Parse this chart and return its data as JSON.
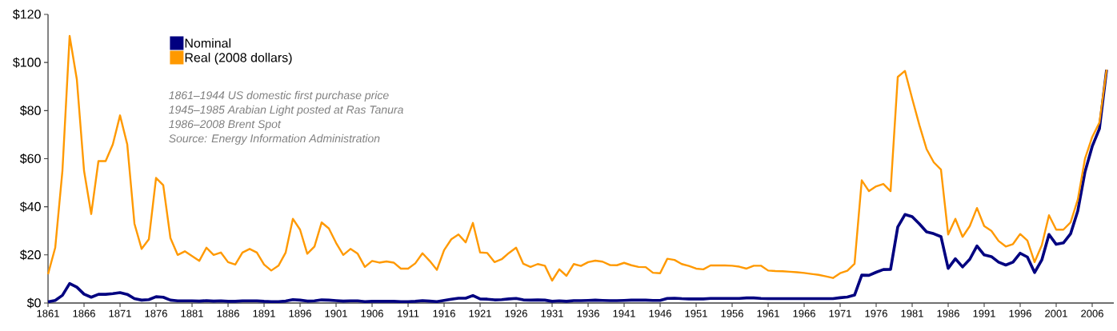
{
  "chart_data": {
    "type": "line",
    "x": [
      1861,
      1862,
      1863,
      1864,
      1865,
      1866,
      1867,
      1868,
      1869,
      1870,
      1871,
      1872,
      1873,
      1874,
      1875,
      1876,
      1877,
      1878,
      1879,
      1880,
      1881,
      1882,
      1883,
      1884,
      1885,
      1886,
      1887,
      1888,
      1889,
      1890,
      1891,
      1892,
      1893,
      1894,
      1895,
      1896,
      1897,
      1898,
      1899,
      1900,
      1901,
      1902,
      1903,
      1904,
      1905,
      1906,
      1907,
      1908,
      1909,
      1910,
      1911,
      1912,
      1913,
      1914,
      1915,
      1916,
      1917,
      1918,
      1919,
      1920,
      1921,
      1922,
      1923,
      1924,
      1925,
      1926,
      1927,
      1928,
      1929,
      1930,
      1931,
      1932,
      1933,
      1934,
      1935,
      1936,
      1937,
      1938,
      1939,
      1940,
      1941,
      1942,
      1943,
      1944,
      1945,
      1946,
      1947,
      1948,
      1949,
      1950,
      1951,
      1952,
      1953,
      1954,
      1955,
      1956,
      1957,
      1958,
      1959,
      1960,
      1961,
      1962,
      1963,
      1964,
      1965,
      1966,
      1967,
      1968,
      1969,
      1970,
      1971,
      1972,
      1973,
      1974,
      1975,
      1976,
      1977,
      1978,
      1979,
      1980,
      1981,
      1982,
      1983,
      1984,
      1985,
      1986,
      1987,
      1988,
      1989,
      1990,
      1991,
      1992,
      1993,
      1994,
      1995,
      1996,
      1997,
      1998,
      1999,
      2000,
      2001,
      2002,
      2003,
      2004,
      2005,
      2006,
      2007,
      2008
    ],
    "series": [
      {
        "name": "Nominal",
        "color": "#000080",
        "values": [
          0.5,
          1.1,
          3.2,
          8.1,
          6.6,
          3.7,
          2.4,
          3.6,
          3.6,
          3.9,
          4.3,
          3.6,
          1.8,
          1.2,
          1.4,
          2.6,
          2.4,
          1.2,
          0.9,
          0.9,
          0.9,
          0.8,
          1.0,
          0.8,
          0.9,
          0.7,
          0.7,
          0.9,
          0.9,
          0.9,
          0.7,
          0.6,
          0.6,
          0.8,
          1.4,
          1.2,
          0.8,
          0.9,
          1.3,
          1.2,
          1.0,
          0.8,
          0.9,
          0.9,
          0.6,
          0.7,
          0.7,
          0.7,
          0.7,
          0.6,
          0.6,
          0.7,
          1.0,
          0.8,
          0.6,
          1.1,
          1.6,
          2.0,
          2.0,
          3.1,
          1.7,
          1.6,
          1.3,
          1.4,
          1.7,
          1.9,
          1.3,
          1.2,
          1.3,
          1.2,
          0.7,
          0.9,
          0.7,
          1.0,
          1.0,
          1.1,
          1.2,
          1.1,
          1.0,
          1.0,
          1.1,
          1.2,
          1.2,
          1.2,
          1.1,
          1.1,
          1.9,
          2.0,
          1.8,
          1.7,
          1.7,
          1.7,
          1.9,
          1.9,
          1.9,
          1.9,
          1.9,
          2.1,
          2.1,
          1.9,
          1.8,
          1.8,
          1.8,
          1.8,
          1.8,
          1.8,
          1.8,
          1.8,
          1.8,
          1.8,
          2.2,
          2.5,
          3.3,
          11.6,
          11.5,
          12.8,
          13.9,
          14.0,
          31.6,
          36.8,
          35.9,
          32.9,
          29.6,
          28.8,
          27.6,
          14.4,
          18.4,
          15.0,
          18.2,
          23.7,
          20.0,
          19.3,
          17.0,
          15.8,
          17.0,
          20.7,
          19.1,
          12.7,
          17.9,
          28.5,
          24.4,
          25.0,
          28.8,
          38.3,
          54.5,
          65.1,
          72.4,
          97
        ]
      },
      {
        "name": "Real (2008 dollars)",
        "color": "#ff9900",
        "values": [
          12,
          23,
          55,
          111,
          93,
          55,
          37,
          59,
          59,
          66,
          78,
          66,
          33,
          22.5,
          26.5,
          52,
          49,
          27,
          20,
          21.5,
          19.5,
          17.5,
          23,
          20,
          21,
          17,
          16,
          21,
          22.5,
          21,
          16,
          13.5,
          15.5,
          21,
          35,
          30.5,
          20.5,
          23.5,
          33.5,
          31,
          25,
          20,
          22.5,
          20.5,
          15,
          17.5,
          16.8,
          17.3,
          16.8,
          14.3,
          14.3,
          16.5,
          20.7,
          17.5,
          13.8,
          22,
          26.5,
          28.5,
          25.2,
          33.3,
          21,
          20.8,
          17,
          18.2,
          20.8,
          23,
          16.3,
          15,
          16.2,
          15.5,
          9.3,
          14,
          11.3,
          16.2,
          15.4,
          17,
          17.6,
          17.2,
          15.8,
          15.7,
          16.7,
          15.7,
          15,
          14.9,
          12.6,
          12.4,
          18.4,
          17.9,
          16.2,
          15.4,
          14.3,
          14,
          15.6,
          15.6,
          15.6,
          15.5,
          15.1,
          14.3,
          15.5,
          15.5,
          13.5,
          13.3,
          13.2,
          13.0,
          12.8,
          12.5,
          12.1,
          11.7,
          11.1,
          10.4,
          12.4,
          13.4,
          16.3,
          51,
          46.5,
          48.5,
          49.5,
          46.5,
          94,
          96.5,
          85,
          74,
          64,
          58.5,
          55.5,
          28.5,
          35,
          27.5,
          32,
          39.5,
          32,
          30,
          25.8,
          23.5,
          24.5,
          28.7,
          26,
          17,
          24,
          36.5,
          30.5,
          30.5,
          33.5,
          43,
          60,
          69,
          75,
          97
        ]
      }
    ],
    "xlim": [
      1861,
      2009
    ],
    "xticks": [
      1861,
      1866,
      1871,
      1876,
      1881,
      1886,
      1891,
      1896,
      1901,
      1906,
      1911,
      1916,
      1921,
      1926,
      1931,
      1936,
      1941,
      1946,
      1951,
      1956,
      1961,
      1966,
      1971,
      1976,
      1981,
      1986,
      1991,
      1996,
      2001,
      2006
    ],
    "ylim": [
      0,
      120
    ],
    "yticks": [
      {
        "value": 0,
        "label": "$0"
      },
      {
        "value": 20,
        "label": "$20"
      },
      {
        "value": 40,
        "label": "$40"
      },
      {
        "value": 60,
        "label": "$60"
      },
      {
        "value": 80,
        "label": "$80"
      },
      {
        "value": 100,
        "label": "$100"
      },
      {
        "value": 120,
        "label": "$120"
      }
    ],
    "grid": false,
    "legend": "top left",
    "marker": "none",
    "line_style": "solid",
    "annotations": [
      "1861–1944 US domestic first purchase price",
      "1945–1985 Arabian Light posted at Ras Tanura",
      "1986–2008 Brent Spot",
      "Source: Energy Information Administration"
    ]
  }
}
